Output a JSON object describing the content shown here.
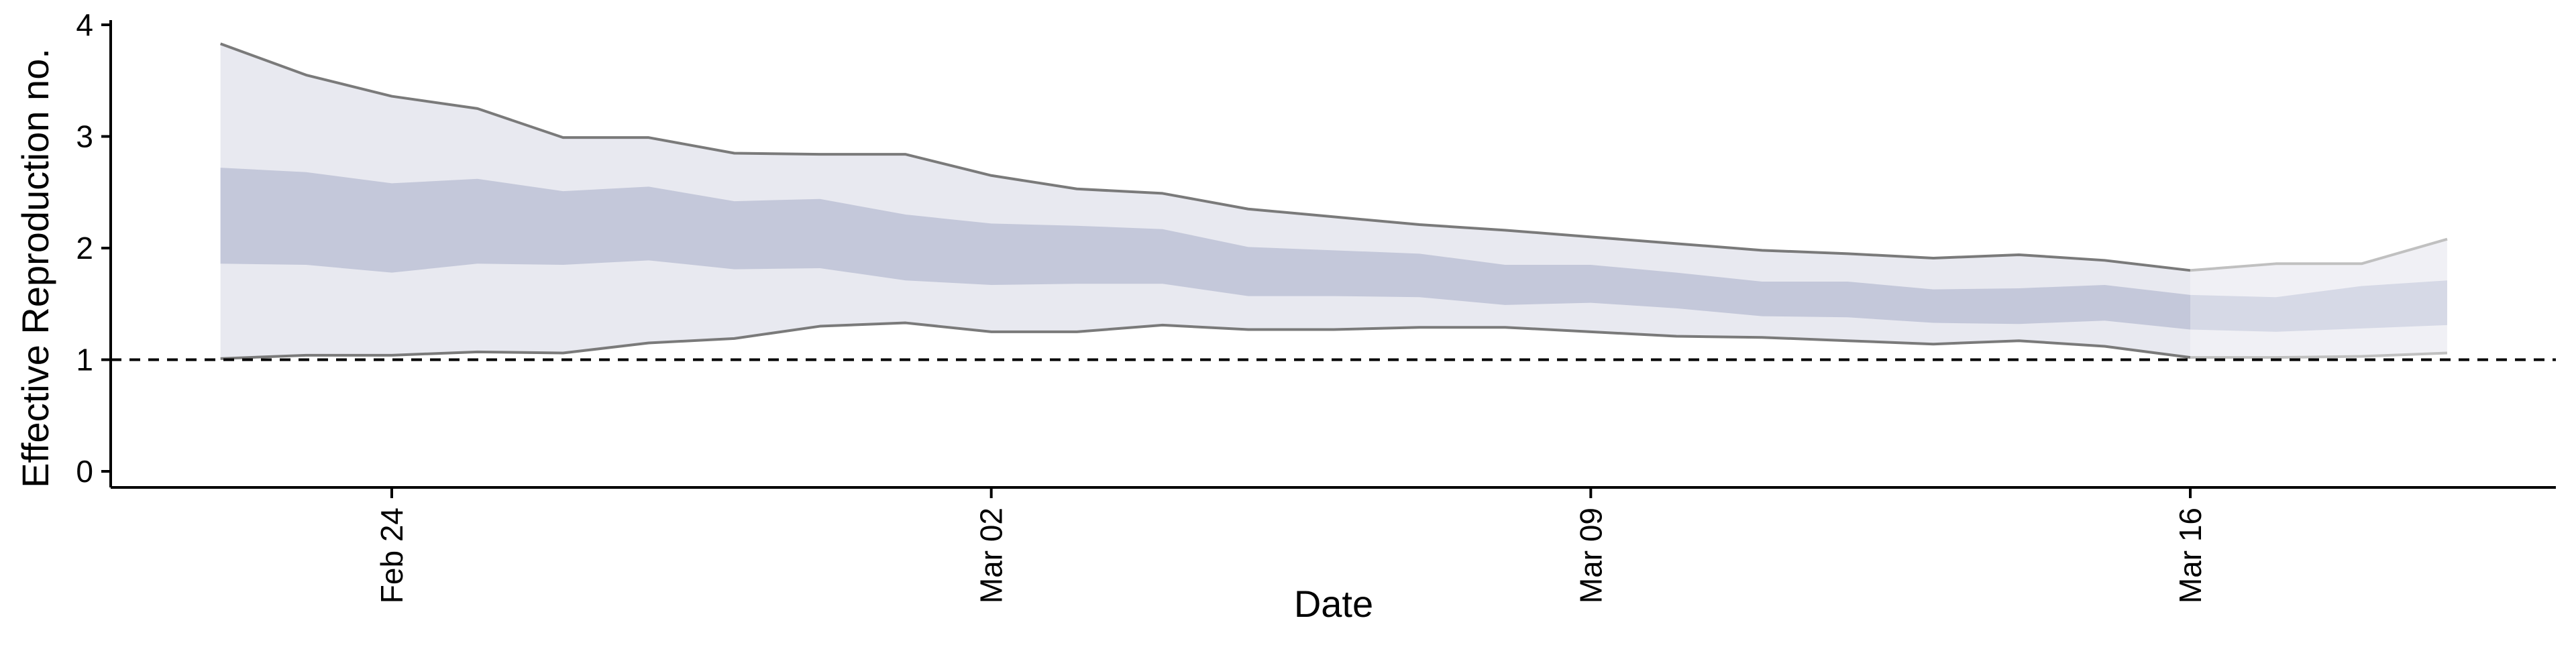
{
  "chart_data": {
    "type": "area",
    "xlabel": "Date",
    "ylabel": "Effective Reproduction no.",
    "ylim": [
      0,
      4
    ],
    "y_ticks": [
      0,
      1,
      2,
      3,
      4
    ],
    "x_ticks": [
      {
        "date": "2020-02-24",
        "label": "Feb 24"
      },
      {
        "date": "2020-03-02",
        "label": "Mar 02"
      },
      {
        "date": "2020-03-09",
        "label": "Mar 09"
      },
      {
        "date": "2020-03-16",
        "label": "Mar 16"
      }
    ],
    "x_range": [
      "2020-02-20",
      "2020-03-20"
    ],
    "reference_line": {
      "y": 1,
      "style": "dashed"
    },
    "grid": false,
    "colors": {
      "outer_band": "#e8e9f0",
      "inner_band": "#c4c8da",
      "outer_band_recent": "#f0f0f5",
      "inner_band_recent": "#d6d9e6",
      "bound_line": "#7a7a7a",
      "bound_line_recent": "#c0c0c0"
    },
    "recent_from": "2020-03-17",
    "series": {
      "x": [
        "2020-02-22",
        "2020-02-23",
        "2020-02-24",
        "2020-02-25",
        "2020-02-26",
        "2020-02-27",
        "2020-02-28",
        "2020-02-29",
        "2020-03-01",
        "2020-03-02",
        "2020-03-03",
        "2020-03-04",
        "2020-03-05",
        "2020-03-06",
        "2020-03-07",
        "2020-03-08",
        "2020-03-09",
        "2020-03-10",
        "2020-03-11",
        "2020-03-12",
        "2020-03-13",
        "2020-03-14",
        "2020-03-15",
        "2020-03-16",
        "2020-03-17",
        "2020-03-18",
        "2020-03-19"
      ],
      "upper_90": [
        3.83,
        3.55,
        3.36,
        3.25,
        2.99,
        2.99,
        2.85,
        2.84,
        2.84,
        2.65,
        2.53,
        2.49,
        2.35,
        2.28,
        2.21,
        2.16,
        2.1,
        2.04,
        1.98,
        1.95,
        1.91,
        1.94,
        1.89,
        1.8,
        1.86,
        1.86,
        2.08
      ],
      "upper_50": [
        2.72,
        2.68,
        2.58,
        2.62,
        2.51,
        2.55,
        2.42,
        2.44,
        2.3,
        2.22,
        2.2,
        2.17,
        2.01,
        1.98,
        1.95,
        1.85,
        1.85,
        1.78,
        1.7,
        1.7,
        1.63,
        1.64,
        1.67,
        1.58,
        1.56,
        1.66,
        1.71
      ],
      "lower_50": [
        1.86,
        1.85,
        1.78,
        1.86,
        1.85,
        1.89,
        1.81,
        1.82,
        1.71,
        1.67,
        1.68,
        1.68,
        1.57,
        1.57,
        1.56,
        1.49,
        1.51,
        1.46,
        1.39,
        1.38,
        1.33,
        1.32,
        1.35,
        1.27,
        1.25,
        1.28,
        1.31
      ],
      "lower_90": [
        1.01,
        1.04,
        1.04,
        1.07,
        1.06,
        1.15,
        1.19,
        1.3,
        1.33,
        1.25,
        1.25,
        1.31,
        1.27,
        1.27,
        1.29,
        1.29,
        1.25,
        1.21,
        1.2,
        1.17,
        1.14,
        1.17,
        1.12,
        1.02,
        1.02,
        1.03,
        1.06
      ]
    }
  }
}
